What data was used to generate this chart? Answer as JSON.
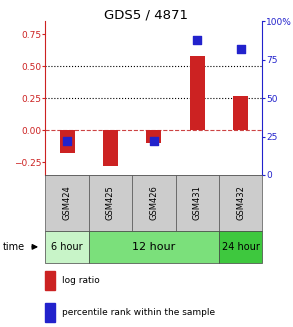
{
  "title": "GDS5 / 4871",
  "samples": [
    "GSM424",
    "GSM425",
    "GSM426",
    "GSM431",
    "GSM432"
  ],
  "log_ratio": [
    -0.18,
    -0.28,
    -0.1,
    0.58,
    0.27
  ],
  "percentile_rank_pct": [
    22,
    0,
    22,
    88,
    82
  ],
  "show_dot": [
    true,
    false,
    true,
    true,
    true
  ],
  "bar_color": "#cc2222",
  "dot_color": "#2222cc",
  "ylim_left": [
    -0.35,
    0.85
  ],
  "ylim_right": [
    0,
    100
  ],
  "yticks_left": [
    -0.25,
    0,
    0.25,
    0.5,
    0.75
  ],
  "yticks_right": [
    0,
    25,
    50,
    75,
    100
  ],
  "hlines": [
    0.0,
    0.25,
    0.5
  ],
  "hline_styles": [
    "dashed",
    "dotted",
    "dotted"
  ],
  "hline_colors": [
    "#cc4444",
    "#000000",
    "#000000"
  ],
  "bar_width": 0.35,
  "dot_size": 28,
  "group_colors": [
    "#c8f4c8",
    "#7be07b",
    "#3ec83e"
  ],
  "group_labels": [
    "6 hour",
    "12 hour",
    "24 hour"
  ],
  "group_starts": [
    0,
    1,
    4
  ],
  "group_ends": [
    1,
    4,
    5
  ],
  "sample_bg": "#cccccc"
}
